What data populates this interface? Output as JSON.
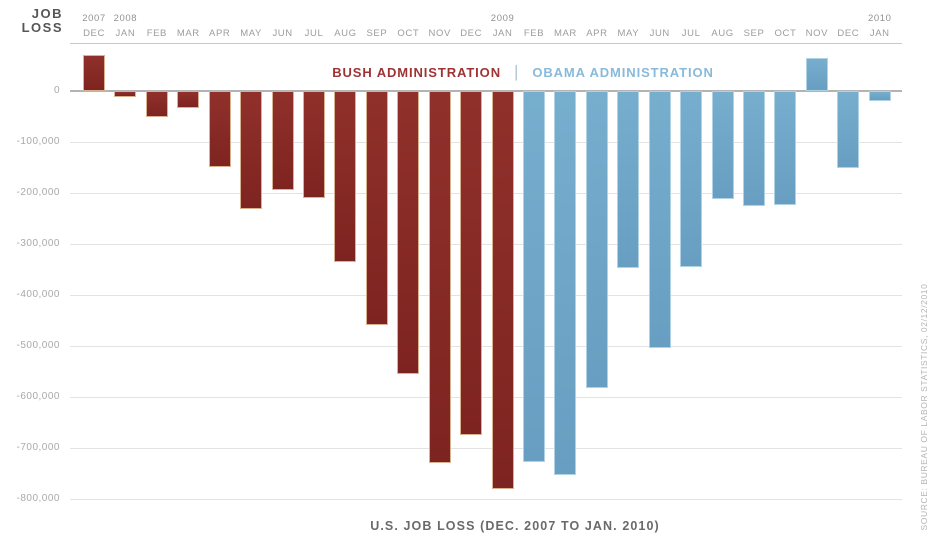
{
  "y_axis_title": {
    "line1": "JOB",
    "line2": "LOSS"
  },
  "legend": {
    "bush_label": "BUSH ADMINISTRATION",
    "divider": "|",
    "obama_label": "OBAMA ADMINISTRATION"
  },
  "title": "U.S. JOB LOSS (DEC. 2007 TO JAN. 2010)",
  "source": "SOURCE: BUREAU OF LABOR STATISTICS, 02/12/2010",
  "colors": {
    "bush_bar": "#8d2a25",
    "obama_bar": "#72a9ca",
    "bush_legend_text": "#9d3433",
    "obama_legend_text": "#87badb",
    "gridline": "#e3e3e3",
    "zero_line": "#b3b3b3",
    "axis_text": "#a9a9a9",
    "month_text": "#9c9c9c",
    "title_text": "#6a6a6a"
  },
  "chart_data": {
    "type": "bar",
    "title": "U.S. JOB LOSS (DEC. 2007 TO JAN. 2010)",
    "xlabel": "",
    "ylabel": "JOB LOSS",
    "ylim": [
      -800000,
      93000
    ],
    "grid": true,
    "legend_position": "top-center",
    "y_ticks": [
      0,
      -100000,
      -200000,
      -300000,
      -400000,
      -500000,
      -600000,
      -700000,
      -800000
    ],
    "y_tick_labels": [
      "0",
      "-100,000",
      "-200,000",
      "-300,000",
      "-400,000",
      "-500,000",
      "-600,000",
      "-700,000",
      "-800,000"
    ],
    "series_legend": [
      {
        "name": "BUSH ADMINISTRATION",
        "color": "#8d2a25"
      },
      {
        "name": "OBAMA ADMINISTRATION",
        "color": "#72a9ca"
      }
    ],
    "points": [
      {
        "month": "DEC",
        "year_label": "2007",
        "value": 70000,
        "administration": "bush"
      },
      {
        "month": "JAN",
        "year_label": "2008",
        "value": -12000,
        "administration": "bush"
      },
      {
        "month": "FEB",
        "value": -50000,
        "administration": "bush"
      },
      {
        "month": "MAR",
        "value": -33000,
        "administration": "bush"
      },
      {
        "month": "APR",
        "value": -149000,
        "administration": "bush"
      },
      {
        "month": "MAY",
        "value": -231000,
        "administration": "bush"
      },
      {
        "month": "JUN",
        "value": -193000,
        "administration": "bush"
      },
      {
        "month": "JUL",
        "value": -210000,
        "administration": "bush"
      },
      {
        "month": "AUG",
        "value": -334000,
        "administration": "bush"
      },
      {
        "month": "SEP",
        "value": -458000,
        "administration": "bush"
      },
      {
        "month": "OCT",
        "value": -554000,
        "administration": "bush"
      },
      {
        "month": "NOV",
        "value": -728000,
        "administration": "bush"
      },
      {
        "month": "DEC",
        "value": -673000,
        "administration": "bush"
      },
      {
        "month": "JAN",
        "year_label": "2009",
        "value": -779000,
        "administration": "bush"
      },
      {
        "month": "FEB",
        "value": -726000,
        "administration": "obama"
      },
      {
        "month": "MAR",
        "value": -753000,
        "administration": "obama"
      },
      {
        "month": "APR",
        "value": -582000,
        "administration": "obama"
      },
      {
        "month": "MAY",
        "value": -347000,
        "administration": "obama"
      },
      {
        "month": "JUN",
        "value": -504000,
        "administration": "obama"
      },
      {
        "month": "JUL",
        "value": -344000,
        "administration": "obama"
      },
      {
        "month": "AUG",
        "value": -211000,
        "administration": "obama"
      },
      {
        "month": "SEP",
        "value": -225000,
        "administration": "obama"
      },
      {
        "month": "OCT",
        "value": -224000,
        "administration": "obama"
      },
      {
        "month": "NOV",
        "value": 64000,
        "administration": "obama"
      },
      {
        "month": "DEC",
        "value": -150000,
        "administration": "obama"
      },
      {
        "month": "JAN",
        "year_label": "2010",
        "value": -20000,
        "administration": "obama"
      }
    ]
  }
}
